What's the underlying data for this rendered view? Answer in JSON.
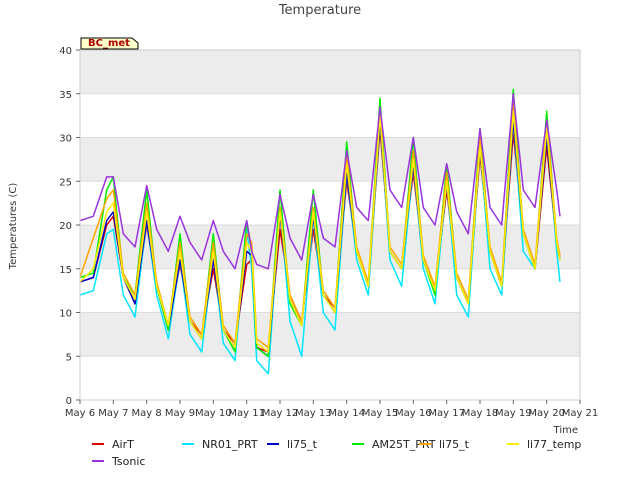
{
  "chart_data": {
    "type": "line",
    "title": "Temperature",
    "xlabel": "Time",
    "ylabel": "Temperatures (C)",
    "station_label": "BC_met",
    "ylim": [
      0,
      40
    ],
    "yticks": [
      0,
      5,
      10,
      15,
      20,
      25,
      30,
      35,
      40
    ],
    "xlim": [
      6,
      21
    ],
    "xticks": [
      {
        "v": 6,
        "label": "May 6"
      },
      {
        "v": 7,
        "label": "May 7"
      },
      {
        "v": 8,
        "label": "May 8"
      },
      {
        "v": 9,
        "label": "May 9"
      },
      {
        "v": 10,
        "label": "May 10"
      },
      {
        "v": 11,
        "label": "May 11"
      },
      {
        "v": 12,
        "label": "May 12"
      },
      {
        "v": 13,
        "label": "May 13"
      },
      {
        "v": 14,
        "label": "May 14"
      },
      {
        "v": 15,
        "label": "May 15"
      },
      {
        "v": 16,
        "label": "May 16"
      },
      {
        "v": 17,
        "label": "May 17"
      },
      {
        "v": 18,
        "label": "May 18"
      },
      {
        "v": 19,
        "label": "May 19"
      },
      {
        "v": 20,
        "label": "May 20"
      },
      {
        "v": 21,
        "label": "May 21"
      }
    ],
    "grid": true,
    "legend_position": "bottom",
    "series": [
      {
        "name": "AirT",
        "color": "#dd0000",
        "x": [
          6.0,
          6.4,
          6.8,
          7.0,
          7.3,
          7.65,
          8.0,
          8.3,
          8.65,
          9.0,
          9.3,
          9.65,
          10.0,
          10.3,
          10.65,
          11.0,
          11.15,
          11.3,
          11.65,
          12.0,
          12.3,
          12.65,
          13.0,
          13.3,
          13.65,
          14.0,
          14.3,
          14.65,
          15.0,
          15.3,
          15.65,
          16.0,
          16.3,
          16.65,
          17.0,
          17.3,
          17.65,
          18.0,
          18.3,
          18.65,
          19.0,
          19.3,
          19.65,
          20.0,
          20.3,
          20.4
        ],
        "y": [
          13.5,
          14,
          20,
          21,
          14,
          11,
          20,
          13,
          8,
          15.5,
          9,
          7.5,
          15,
          8,
          6.5,
          15.5,
          16,
          6,
          5.5,
          19.5,
          12,
          9,
          19.5,
          12,
          10.5,
          25,
          17,
          13,
          31,
          17,
          15,
          26,
          16,
          12.5,
          24,
          14,
          11,
          28,
          17,
          13,
          30.5,
          19,
          15,
          29,
          18,
          16
        ]
      },
      {
        "name": "NR01_PRT",
        "color": "#00e5ff",
        "x": [
          6.0,
          6.4,
          6.8,
          7.0,
          7.3,
          7.65,
          8.0,
          8.3,
          8.65,
          9.0,
          9.3,
          9.65,
          10.0,
          10.3,
          10.65,
          11.0,
          11.15,
          11.3,
          11.65,
          12.0,
          12.3,
          12.65,
          13.0,
          13.3,
          13.65,
          14.0,
          14.3,
          14.65,
          15.0,
          15.3,
          15.65,
          16.0,
          16.3,
          16.65,
          17.0,
          17.3,
          17.65,
          18.0,
          18.3,
          18.65,
          19.0,
          19.3,
          19.65,
          20.0,
          20.3,
          20.4
        ],
        "y": [
          12,
          12.5,
          19,
          19.5,
          12,
          9.5,
          20.5,
          12,
          7,
          16,
          7.5,
          5.5,
          16.5,
          6.5,
          4.5,
          19.5,
          15,
          4.5,
          3,
          22,
          9,
          5,
          21,
          10,
          8,
          26,
          16,
          12,
          32,
          16,
          13,
          27,
          15,
          11,
          25,
          12,
          9.5,
          29,
          15,
          12,
          32,
          17,
          15,
          31,
          17,
          13.5
        ]
      },
      {
        "name": "li75_t",
        "color": "#0000cc",
        "x": [
          6.0,
          6.4,
          6.8,
          7.0,
          7.3,
          7.65,
          8.0,
          8.3,
          8.65,
          9.0,
          9.3,
          9.65,
          10.0,
          10.3,
          10.65,
          11.0,
          11.15,
          11.3,
          11.65,
          12.0,
          12.3,
          12.65,
          13.0,
          13.3,
          13.65,
          14.0,
          14.3,
          14.65,
          15.0,
          15.3,
          15.65,
          16.0,
          16.3,
          16.65,
          17.0,
          17.3,
          17.65,
          18.0,
          18.3,
          18.65,
          19.0,
          19.3,
          19.65,
          20.0,
          20.3,
          20.4
        ],
        "y": [
          13.5,
          14,
          20.5,
          21.5,
          14,
          11,
          20.5,
          13,
          8,
          16,
          9,
          7,
          16,
          8,
          6,
          17,
          16.5,
          6,
          5,
          21,
          11.5,
          8.5,
          21,
          12,
          10,
          26,
          17,
          13,
          32,
          17,
          15,
          27,
          16,
          12.5,
          25,
          14,
          11,
          29,
          17,
          13,
          32,
          19,
          15,
          30,
          18,
          16
        ]
      },
      {
        "name": "AM25T_PRT",
        "color": "#00ee00",
        "x": [
          6.0,
          6.4,
          6.8,
          7.0,
          7.3,
          7.65,
          8.0,
          8.3,
          8.65,
          9.0,
          9.3,
          9.65,
          10.0,
          10.3,
          10.65,
          11.0,
          11.15,
          11.3,
          11.65,
          12.0,
          12.3,
          12.65,
          13.0,
          13.3,
          13.65,
          14.0,
          14.3,
          14.65,
          15.0,
          15.3,
          15.65,
          16.0,
          16.3,
          16.65,
          17.0,
          17.3,
          17.65,
          18.0,
          18.3,
          18.65,
          19.0,
          19.3,
          19.65,
          20.0,
          20.3,
          20.4
        ],
        "y": [
          14,
          14.5,
          24,
          25.5,
          14,
          12,
          24,
          13,
          8,
          19,
          9,
          7,
          19,
          8,
          5.5,
          20.5,
          17,
          6,
          5,
          24,
          11,
          8.5,
          24,
          12,
          10,
          29.5,
          17,
          13,
          34.5,
          17,
          15,
          30,
          16,
          12,
          27,
          14,
          11,
          31,
          17,
          13,
          35.5,
          19,
          15,
          33,
          18,
          16
        ]
      },
      {
        "name": "li75_t",
        "color": "#ffa500",
        "x": [
          6.0,
          6.4,
          6.8,
          7.0,
          7.3,
          7.65,
          8.0,
          8.3,
          8.65,
          9.0,
          9.3,
          9.65,
          10.0,
          10.3,
          10.65,
          11.0,
          11.15,
          11.3,
          11.65,
          12.0,
          12.3,
          12.65,
          13.0,
          13.3,
          13.65,
          14.0,
          14.3,
          14.65,
          15.0,
          15.3,
          15.65,
          16.0,
          16.3,
          16.65,
          17.0,
          17.3,
          17.65,
          18.0,
          18.3,
          18.65,
          19.0,
          19.3,
          19.65,
          20.0,
          20.3,
          20.4
        ],
        "y": [
          14,
          18.5,
          23,
          24,
          14.5,
          12,
          22.5,
          13.5,
          8.5,
          18,
          9.5,
          7.5,
          18,
          8.5,
          6.5,
          19,
          18,
          7,
          6,
          22,
          12,
          9,
          22,
          12.5,
          10.5,
          28,
          17.5,
          13.5,
          33,
          17.5,
          15.5,
          28.5,
          16.5,
          13,
          26,
          14.5,
          11.5,
          30,
          17.5,
          13.5,
          34,
          19.5,
          15.5,
          32,
          18.5,
          16.5
        ]
      },
      {
        "name": "li77_temp",
        "color": "#ffee00",
        "x": [
          6.0,
          6.4,
          6.8,
          7.0,
          7.3,
          7.65,
          8.0,
          8.3,
          8.65,
          9.0,
          9.3,
          9.65,
          10.0,
          10.3,
          10.65,
          11.0,
          11.15,
          11.3,
          11.65,
          12.0,
          12.3,
          12.65,
          13.0,
          13.3,
          13.65,
          14.0,
          14.3,
          14.65,
          15.0,
          15.3,
          15.65,
          16.0,
          16.3,
          16.65,
          17.0,
          17.3,
          17.65,
          18.0,
          18.3,
          18.65,
          19.0,
          19.3,
          19.65,
          20.0,
          20.3,
          20.4
        ],
        "y": [
          13.5,
          15,
          21.5,
          22.5,
          14,
          11.5,
          21.5,
          13,
          8.5,
          17,
          9,
          7,
          17,
          8,
          6,
          18,
          17,
          6.5,
          5.5,
          21.5,
          11.5,
          8.5,
          21.5,
          12,
          10,
          27,
          17,
          13,
          32.5,
          17,
          15,
          27.5,
          16,
          12.5,
          25,
          14,
          11,
          29,
          17,
          13,
          33,
          19,
          15,
          31,
          18,
          16
        ]
      },
      {
        "name": "Tsonic",
        "color": "#9933dd",
        "x": [
          6.0,
          6.4,
          6.8,
          7.0,
          7.3,
          7.65,
          8.0,
          8.3,
          8.65,
          9.0,
          9.3,
          9.65,
          10.0,
          10.3,
          10.65,
          11.0,
          11.15,
          11.3,
          11.65,
          12.0,
          12.3,
          12.65,
          13.0,
          13.3,
          13.65,
          14.0,
          14.3,
          14.65,
          15.0,
          15.3,
          15.65,
          16.0,
          16.3,
          16.65,
          17.0,
          17.3,
          17.65,
          18.0,
          18.3,
          18.65,
          19.0,
          19.3,
          19.65,
          20.0,
          20.3,
          20.4
        ],
        "y": [
          20.5,
          21,
          25.5,
          25.5,
          19,
          17.5,
          24.5,
          19.5,
          17,
          21,
          18,
          16,
          20.5,
          17,
          15,
          20.5,
          17,
          15.5,
          15,
          23.5,
          18.5,
          16,
          23.5,
          18.5,
          17.5,
          28.5,
          22,
          20.5,
          33.5,
          24,
          22,
          30,
          22,
          20,
          27,
          21.5,
          19,
          31,
          22,
          20,
          35,
          24,
          22,
          32,
          24,
          21
        ]
      }
    ]
  }
}
